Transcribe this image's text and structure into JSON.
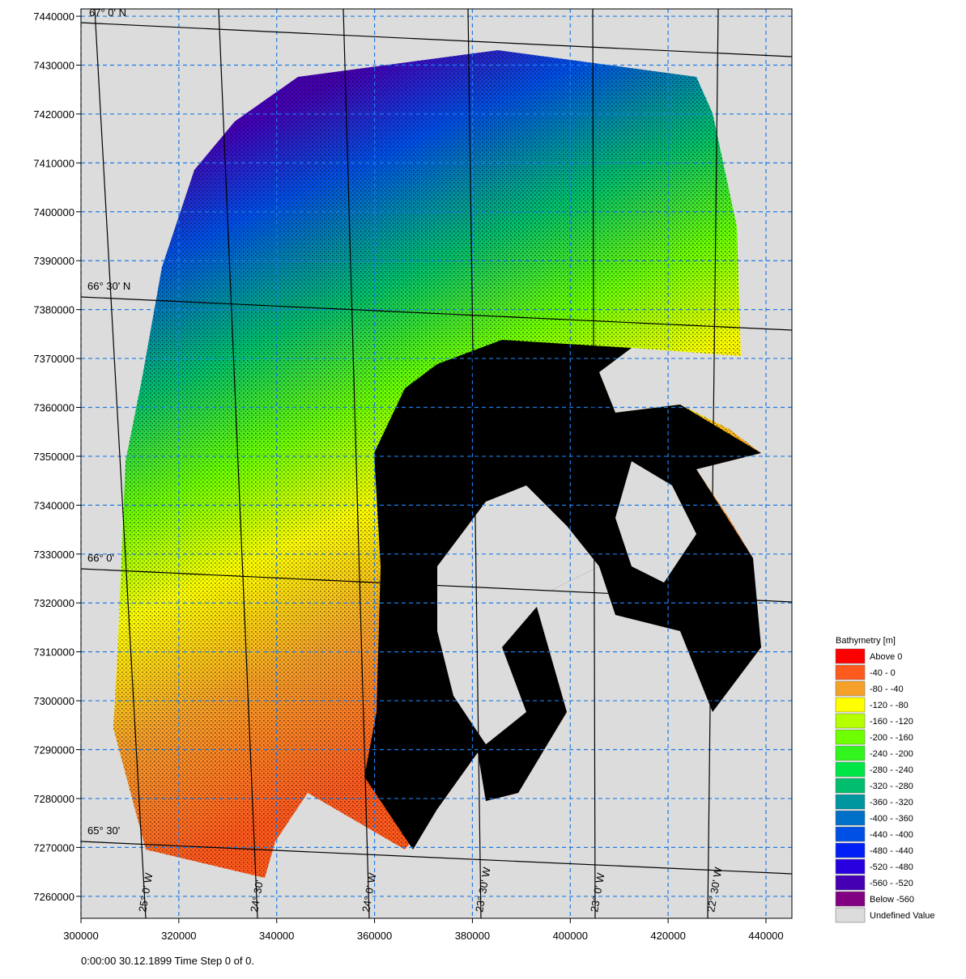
{
  "plot": {
    "xlim": [
      300000,
      445300
    ],
    "ylim": [
      7255500,
      7441500
    ],
    "xticks": [
      300000,
      320000,
      340000,
      360000,
      380000,
      400000,
      420000,
      440000
    ],
    "yticks": [
      7260000,
      7270000,
      7280000,
      7290000,
      7300000,
      7310000,
      7320000,
      7330000,
      7340000,
      7350000,
      7360000,
      7370000,
      7380000,
      7390000,
      7400000,
      7410000,
      7420000,
      7430000,
      7440000
    ],
    "grid": true,
    "graticule_labels": [
      "67° 0' N",
      "66° 30' N",
      "66° 0'",
      "65° 30'",
      "25° 0' W",
      "24° 30'",
      "24° 0' W",
      "23° 30' W",
      "23° 0' W",
      "22° 30' W"
    ],
    "legend": {
      "title": "Bathymetry [m]",
      "items": [
        {
          "label": "Above    0",
          "color": "#ff0000"
        },
        {
          "label": "-40 -    0",
          "color": "#ff5a1e"
        },
        {
          "label": "-80 -  -40",
          "color": "#f5a028"
        },
        {
          "label": "-120 -  -80",
          "color": "#ffff00"
        },
        {
          "label": "-160 - -120",
          "color": "#b4ff00"
        },
        {
          "label": "-200 - -160",
          "color": "#6eff00"
        },
        {
          "label": "-240 - -200",
          "color": "#32f51e"
        },
        {
          "label": "-280 - -240",
          "color": "#00e646"
        },
        {
          "label": "-320 - -280",
          "color": "#00be6e"
        },
        {
          "label": "-360 - -320",
          "color": "#0096a0"
        },
        {
          "label": "-400 - -360",
          "color": "#0070c8"
        },
        {
          "label": "-440 - -400",
          "color": "#0050e6"
        },
        {
          "label": "-480 - -440",
          "color": "#0020f5"
        },
        {
          "label": "-520 - -480",
          "color": "#2800e0"
        },
        {
          "label": "-560 - -520",
          "color": "#4600b4"
        },
        {
          "label": "Below -560",
          "color": "#820082"
        },
        {
          "label": "Undefined Value",
          "color": "#dcdcdc"
        }
      ]
    },
    "footer": "0:00:00 30.12.1899  Time Step 0 of 0."
  }
}
